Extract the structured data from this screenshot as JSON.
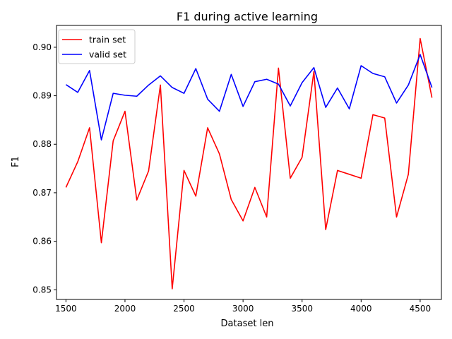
{
  "chart_data": {
    "type": "line",
    "title": "F1 during active learning",
    "xlabel": "Dataset len",
    "ylabel": "F1",
    "xlim": [
      1420,
      4680
    ],
    "ylim": [
      0.848,
      0.9045
    ],
    "xticks": [
      1500,
      2000,
      2500,
      3000,
      3500,
      4000,
      4500
    ],
    "yticks": [
      0.85,
      0.86,
      0.87,
      0.88,
      0.89,
      0.9
    ],
    "ytick_labels": [
      "0.85",
      "0.86",
      "0.87",
      "0.88",
      "0.89",
      "0.90"
    ],
    "grid": false,
    "legend_position": "upper-left",
    "x": [
      1500,
      1600,
      1700,
      1800,
      1900,
      2000,
      2100,
      2200,
      2300,
      2400,
      2500,
      2600,
      2700,
      2800,
      2900,
      3000,
      3100,
      3200,
      3300,
      3400,
      3500,
      3600,
      3700,
      3800,
      3900,
      4000,
      4100,
      4200,
      4300,
      4400,
      4500,
      4600
    ],
    "series": [
      {
        "name": "train set",
        "color": "#ff0000",
        "values": [
          0.8711,
          0.8764,
          0.8834,
          0.8597,
          0.8807,
          0.8868,
          0.8685,
          0.8745,
          0.8922,
          0.8502,
          0.8746,
          0.8693,
          0.8834,
          0.878,
          0.8686,
          0.8642,
          0.8711,
          0.865,
          0.8957,
          0.873,
          0.8773,
          0.895,
          0.8624,
          0.8746,
          0.8738,
          0.873,
          0.8861,
          0.8854,
          0.865,
          0.8738,
          0.9018,
          0.8896
        ]
      },
      {
        "name": "valid set",
        "color": "#0000ff",
        "values": [
          0.8923,
          0.8907,
          0.8952,
          0.8809,
          0.8905,
          0.8901,
          0.8899,
          0.8922,
          0.8941,
          0.8917,
          0.8905,
          0.8956,
          0.8893,
          0.8868,
          0.8944,
          0.8878,
          0.8929,
          0.8934,
          0.8924,
          0.8879,
          0.8927,
          0.8958,
          0.8876,
          0.8916,
          0.8873,
          0.8962,
          0.8946,
          0.8939,
          0.8885,
          0.8922,
          0.8985,
          0.8917
        ]
      }
    ]
  }
}
